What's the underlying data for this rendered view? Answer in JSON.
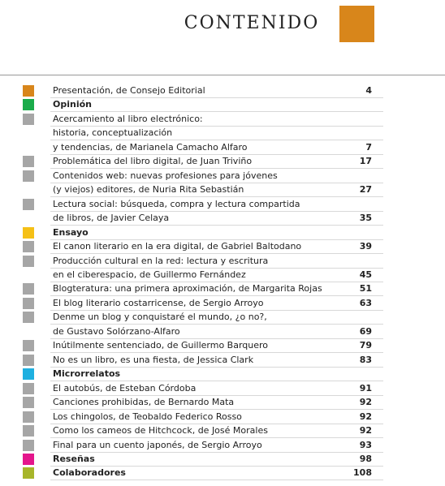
{
  "header": {
    "title": "CONTENIDO",
    "accent_color": "#d8861b"
  },
  "entries": [
    {
      "kind": "entry",
      "color": "#d8861b",
      "lines": [
        "Presentación, de Consejo Editorial"
      ],
      "page": 4
    },
    {
      "kind": "section",
      "color": "#1aab4a",
      "lines": [
        "Opinión"
      ]
    },
    {
      "kind": "entry",
      "color": "#a6a6a6",
      "lines": [
        "Acercamiento al libro electrónico:",
        "historia, conceptualización",
        "y tendencias, de Marianela Camacho Alfaro"
      ],
      "page": 7
    },
    {
      "kind": "entry",
      "color": "#a6a6a6",
      "lines": [
        "Problemática del libro digital, de Juan Triviño"
      ],
      "page": 17
    },
    {
      "kind": "entry",
      "color": "#a6a6a6",
      "lines": [
        "Contenidos web: nuevas profesiones para jóvenes",
        "(y viejos) editores, de Nuria Rita Sebastián"
      ],
      "page": 27
    },
    {
      "kind": "entry",
      "color": "#a6a6a6",
      "lines": [
        "Lectura social: búsqueda, compra y lectura compartida",
        "de libros, de Javier Celaya"
      ],
      "page": 35
    },
    {
      "kind": "section",
      "color": "#f5c016",
      "lines": [
        "Ensayo"
      ]
    },
    {
      "kind": "entry",
      "color": "#a6a6a6",
      "lines": [
        "El canon literario en la era digital, de Gabriel Baltodano"
      ],
      "page": 39
    },
    {
      "kind": "entry",
      "color": "#a6a6a6",
      "lines": [
        "Producción cultural en la red: lectura y escritura",
        "en el ciberespacio, de Guillermo Fernández"
      ],
      "page": 45
    },
    {
      "kind": "entry",
      "color": "#a6a6a6",
      "lines": [
        "Blogteratura: una primera aproximación, de Margarita Rojas"
      ],
      "page": 51
    },
    {
      "kind": "entry",
      "color": "#a6a6a6",
      "lines": [
        "El blog literario costarricense, de Sergio Arroyo"
      ],
      "page": 63
    },
    {
      "kind": "entry",
      "color": "#a6a6a6",
      "lines": [
        "Denme un blog y conquistaré el mundo, ¿o no?,",
        "de Gustavo Solórzano-Alfaro"
      ],
      "page": 69
    },
    {
      "kind": "entry",
      "color": "#a6a6a6",
      "lines": [
        "Inútilmente sentenciado, de Guillermo Barquero"
      ],
      "page": 79
    },
    {
      "kind": "entry",
      "color": "#a6a6a6",
      "lines": [
        "No es un libro, es una fiesta, de Jessica Clark"
      ],
      "page": 83
    },
    {
      "kind": "section",
      "color": "#1eb0e0",
      "lines": [
        "Microrrelatos"
      ]
    },
    {
      "kind": "entry",
      "color": "#a6a6a6",
      "lines": [
        "El autobús, de Esteban Córdoba"
      ],
      "page": 91
    },
    {
      "kind": "entry",
      "color": "#a6a6a6",
      "lines": [
        "Canciones prohibidas, de Bernardo Mata"
      ],
      "page": 92
    },
    {
      "kind": "entry",
      "color": "#a6a6a6",
      "lines": [
        "Los chingolos, de Teobaldo Federico Rosso"
      ],
      "page": 92
    },
    {
      "kind": "entry",
      "color": "#a6a6a6",
      "lines": [
        "Como los cameos de Hitchcock, de José Morales"
      ],
      "page": 92
    },
    {
      "kind": "entry",
      "color": "#a6a6a6",
      "lines": [
        "Final para un cuento japonés, de Sergio Arroyo"
      ],
      "page": 93
    },
    {
      "kind": "section",
      "color": "#e4168c",
      "lines": [
        "Reseñas"
      ],
      "page": 98
    },
    {
      "kind": "section",
      "color": "#a7b52a",
      "lines": [
        "Colaboradores"
      ],
      "page": 108
    }
  ]
}
